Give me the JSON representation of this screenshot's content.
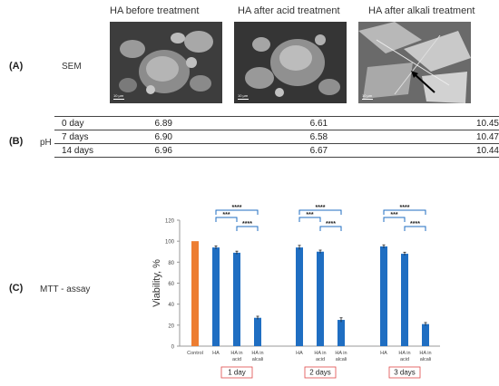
{
  "sem": {
    "headers": [
      "HA before treatment",
      "HA after acid treatment",
      "HA after alkali treatment"
    ],
    "scale_labels": [
      "10 µm",
      "10 µm",
      "10 µm"
    ]
  },
  "panels": {
    "a": "(A)",
    "a_label": "SEM",
    "b": "(B)",
    "b_label": "pH",
    "c": "(C)",
    "c_label": "MTT - assay"
  },
  "ph_table": {
    "rows": [
      {
        "day": "0 day",
        "before": "6.89",
        "acid": "6.61",
        "alkali": "10.45"
      },
      {
        "day": "7 days",
        "before": "6.90",
        "acid": "6.58",
        "alkali": "10.47"
      },
      {
        "day": "14 days",
        "before": "6.96",
        "acid": "6.67",
        "alkali": "10.44"
      }
    ]
  },
  "chart_data": {
    "type": "bar",
    "ylabel": "Viability, %",
    "ylim": [
      0,
      120
    ],
    "yticks": [
      0,
      20,
      40,
      60,
      80,
      100,
      120
    ],
    "grid": false,
    "colors": {
      "control": "#ed7d31",
      "ha": "#1f6ec2"
    },
    "groups": [
      {
        "label": "",
        "bars": [
          {
            "category": "Control",
            "value": 100,
            "err": 0
          }
        ]
      },
      {
        "label": "1 day",
        "bars": [
          {
            "category": "HA",
            "value": 94,
            "err": 1.5
          },
          {
            "category": "HA in acid",
            "value": 89,
            "err": 1.5
          },
          {
            "category": "HA in alcali",
            "value": 27,
            "err": 1.5
          }
        ]
      },
      {
        "label": "2 days",
        "bars": [
          {
            "category": "HA",
            "value": 94,
            "err": 2
          },
          {
            "category": "HA in acid",
            "value": 90,
            "err": 1.5
          },
          {
            "category": "HA in alcali",
            "value": 25,
            "err": 2
          }
        ]
      },
      {
        "label": "3 days",
        "bars": [
          {
            "category": "HA",
            "value": 95,
            "err": 1.5
          },
          {
            "category": "HA in acid",
            "value": 88,
            "err": 1.5
          },
          {
            "category": "HA in alcali",
            "value": 21,
            "err": 1.5
          }
        ]
      }
    ],
    "significance": [
      {
        "group": 1,
        "from": 0,
        "to": 1,
        "label": "***"
      },
      {
        "group": 1,
        "from": 1,
        "to": 2,
        "label": "****"
      },
      {
        "group": 1,
        "from": 0,
        "to": 2,
        "label": "****"
      },
      {
        "group": 2,
        "from": 0,
        "to": 1,
        "label": "***"
      },
      {
        "group": 2,
        "from": 1,
        "to": 2,
        "label": "****"
      },
      {
        "group": 2,
        "from": 0,
        "to": 2,
        "label": "****"
      },
      {
        "group": 3,
        "from": 0,
        "to": 1,
        "label": "***"
      },
      {
        "group": 3,
        "from": 1,
        "to": 2,
        "label": "****"
      },
      {
        "group": 3,
        "from": 0,
        "to": 2,
        "label": "****"
      }
    ]
  }
}
